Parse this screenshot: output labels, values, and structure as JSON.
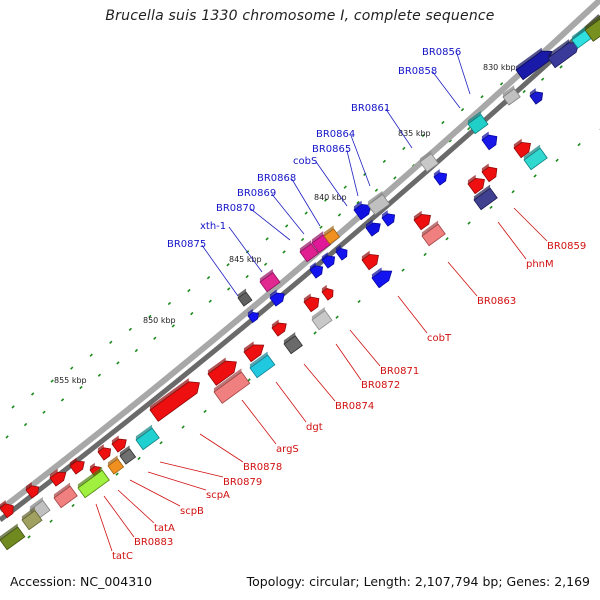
{
  "title": "Brucella suis 1330 chromosome I, complete sequence",
  "footer": {
    "accession": "Accession: NC_004310",
    "topology": "Topology: circular; Length: 2,107,794 bp; Genes: 2,169"
  },
  "colors": {
    "forward_label": "#1414c8",
    "reverse_label": "#d01010",
    "backbone": "#8a8a8a",
    "tick_mark": "#1a8a1a"
  },
  "scale_ticks": [
    "830 kbp",
    "835 kbp",
    "840 kbp",
    "845 kbp",
    "850 kbp",
    "855 kbp"
  ],
  "forward_labels": [
    "BR0856",
    "BR0858",
    "BR0861",
    "BR0864",
    "BR0865",
    "cobS",
    "BR0868",
    "BR0869",
    "BR0870",
    "xth-1",
    "BR0875"
  ],
  "reverse_labels": [
    "BR0859",
    "phnM",
    "BR0863",
    "cobT",
    "BR0871",
    "BR0872",
    "BR0874",
    "dgt",
    "argS",
    "BR0878",
    "BR0879",
    "scpA",
    "scpB",
    "tatA",
    "BR0883",
    "tatC"
  ]
}
